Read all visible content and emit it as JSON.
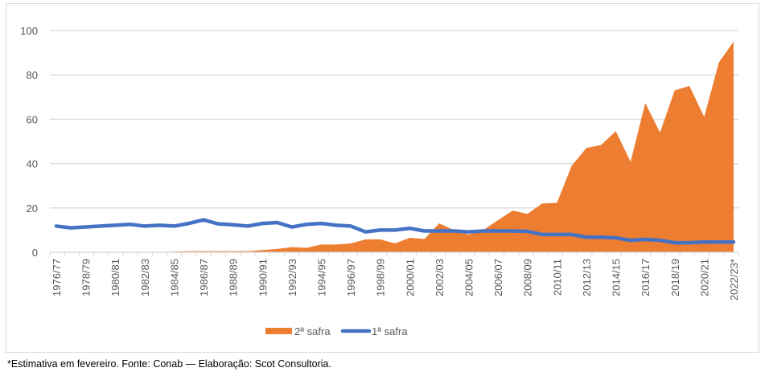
{
  "chart_data": {
    "type": "area+line",
    "title": "",
    "xlabel": "",
    "ylabel": "",
    "ylim": [
      0,
      100
    ],
    "yticks": [
      "0",
      "20",
      "40",
      "60",
      "80",
      "100"
    ],
    "grid": true,
    "legend_position": "bottom",
    "x_tick_labels": [
      "1976/77",
      "1978/79",
      "1980/81",
      "1982/83",
      "1984/85",
      "1986/87",
      "1988/89",
      "1990/91",
      "1992/93",
      "1994/95",
      "1996/97",
      "1998/99",
      "2000/01",
      "2002/03",
      "2004/05",
      "2006/07",
      "2008/09",
      "2010/11",
      "2012/13",
      "2014/15",
      "2016/17",
      "2018/19",
      "2020/21",
      "2022/23*"
    ],
    "n_points": 47,
    "series": [
      {
        "name": "2ª safra",
        "type": "area",
        "color": "#ED7D31",
        "values": [
          0,
          0,
          0,
          0,
          0,
          0,
          0,
          0,
          0.3,
          0.5,
          0.5,
          0.5,
          0.5,
          0.5,
          1,
          1.5,
          2.3,
          2,
          3.5,
          3.5,
          4,
          5.8,
          5.8,
          4,
          6.5,
          6,
          13,
          10,
          8,
          10,
          14.5,
          18.8,
          17.3,
          22,
          22.3,
          39,
          47,
          48.4,
          54.6,
          40.8,
          67.3,
          54,
          73,
          75,
          61,
          85.6,
          95
        ]
      },
      {
        "name": "1ª safra",
        "type": "line",
        "color": "#4472C4",
        "values": [
          11.8,
          11,
          11.4,
          11.8,
          12.2,
          12.6,
          11.8,
          12.2,
          11.8,
          13,
          14.6,
          12.8,
          12.4,
          11.8,
          13,
          13.4,
          11.4,
          12.6,
          13,
          12.2,
          11.8,
          9.2,
          10,
          10,
          10.8,
          9.6,
          9.6,
          9.6,
          9.2,
          9.6,
          9.6,
          9.6,
          9.4,
          8,
          8,
          8,
          6.8,
          6.8,
          6.5,
          5.4,
          5.8,
          5.4,
          4.3,
          4.3,
          4.6,
          4.6,
          4.6
        ]
      }
    ]
  },
  "footnote": "*Estimativa em fevereiro. Fonte: Conab — Elaboração: Scot Consultoria."
}
